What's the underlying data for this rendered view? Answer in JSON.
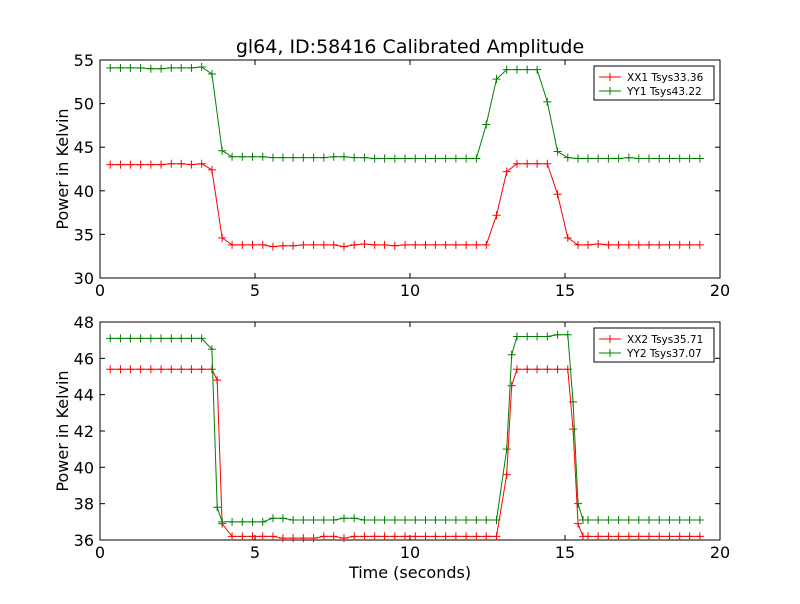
{
  "title": "gl64, ID:58416 Calibrated Amplitude",
  "colors": {
    "red": "#ff0000",
    "green": "#008000",
    "axis": "#000000"
  },
  "chart_data": [
    {
      "type": "line",
      "title": "gl64, ID:58416 Calibrated Amplitude",
      "xlabel": "",
      "ylabel": "Power in Kelvin",
      "xlim": [
        0,
        20
      ],
      "ylim": [
        30,
        55
      ],
      "xticks": [
        0,
        5,
        10,
        15,
        20
      ],
      "yticks": [
        30,
        35,
        40,
        45,
        50,
        55
      ],
      "grid": false,
      "legend_position": "top-right",
      "x": [
        0.33,
        0.66,
        0.98,
        1.31,
        1.64,
        1.97,
        2.3,
        2.62,
        2.95,
        3.28,
        3.61,
        3.94,
        4.26,
        4.59,
        4.92,
        5.25,
        5.58,
        5.9,
        6.23,
        6.56,
        6.89,
        7.22,
        7.54,
        7.87,
        8.2,
        8.53,
        8.86,
        9.18,
        9.51,
        9.84,
        10.17,
        10.5,
        10.82,
        11.15,
        11.48,
        11.81,
        12.14,
        12.46,
        12.79,
        13.12,
        13.45,
        13.78,
        14.1,
        14.43,
        14.76,
        15.09,
        15.42,
        15.74,
        16.07,
        16.4,
        16.73,
        17.06,
        17.38,
        17.71,
        18.04,
        18.37,
        18.7,
        19.02,
        19.35
      ],
      "series": [
        {
          "name": "XX1 Tsys33.36",
          "color": "red",
          "values": [
            43.0,
            43.0,
            43.0,
            43.0,
            43.0,
            43.0,
            43.1,
            43.1,
            43.0,
            43.1,
            42.4,
            34.6,
            33.8,
            33.8,
            33.8,
            33.8,
            33.6,
            33.7,
            33.7,
            33.8,
            33.8,
            33.8,
            33.8,
            33.6,
            33.8,
            33.9,
            33.8,
            33.8,
            33.7,
            33.8,
            33.8,
            33.8,
            33.8,
            33.8,
            33.8,
            33.8,
            33.8,
            33.8,
            37.2,
            42.2,
            43.1,
            43.1,
            43.1,
            43.1,
            39.6,
            34.6,
            33.8,
            33.8,
            33.9,
            33.8,
            33.8,
            33.8,
            33.8,
            33.8,
            33.8,
            33.8,
            33.8,
            33.8,
            33.8
          ]
        },
        {
          "name": "YY1 Tsys43.22",
          "color": "green",
          "values": [
            54.1,
            54.1,
            54.1,
            54.1,
            54.0,
            54.0,
            54.1,
            54.1,
            54.1,
            54.2,
            53.4,
            44.6,
            43.9,
            43.9,
            43.9,
            43.9,
            43.8,
            43.8,
            43.8,
            43.8,
            43.8,
            43.8,
            43.9,
            43.9,
            43.8,
            43.8,
            43.7,
            43.7,
            43.7,
            43.7,
            43.7,
            43.7,
            43.7,
            43.7,
            43.7,
            43.7,
            43.7,
            47.6,
            52.8,
            53.9,
            53.9,
            53.9,
            53.9,
            50.2,
            44.5,
            43.8,
            43.7,
            43.7,
            43.7,
            43.7,
            43.7,
            43.8,
            43.7,
            43.7,
            43.7,
            43.7,
            43.7,
            43.7,
            43.7
          ]
        }
      ]
    },
    {
      "type": "line",
      "title": "",
      "xlabel": "Time (seconds)",
      "ylabel": "Power in Kelvin",
      "xlim": [
        0,
        20
      ],
      "ylim": [
        36,
        48
      ],
      "xticks": [
        0,
        5,
        10,
        15,
        20
      ],
      "yticks": [
        36,
        38,
        40,
        42,
        44,
        46,
        48
      ],
      "grid": false,
      "legend_position": "top-right",
      "x": [
        0.33,
        0.66,
        0.98,
        1.31,
        1.64,
        1.97,
        2.3,
        2.62,
        2.95,
        3.28,
        3.61,
        3.78,
        3.94,
        4.26,
        4.59,
        4.92,
        5.25,
        5.58,
        5.9,
        6.23,
        6.56,
        6.89,
        7.22,
        7.54,
        7.87,
        8.2,
        8.53,
        8.86,
        9.18,
        9.51,
        9.84,
        10.17,
        10.5,
        10.82,
        11.15,
        11.48,
        11.81,
        12.14,
        12.46,
        12.79,
        13.12,
        13.28,
        13.45,
        13.78,
        14.1,
        14.43,
        14.76,
        15.09,
        15.26,
        15.42,
        15.58,
        15.74,
        16.07,
        16.4,
        16.73,
        17.06,
        17.38,
        17.71,
        18.04,
        18.37,
        18.7,
        19.02,
        19.35
      ],
      "series": [
        {
          "name": "XX2 Tsys35.71",
          "color": "red",
          "values": [
            45.4,
            45.4,
            45.4,
            45.4,
            45.4,
            45.4,
            45.4,
            45.4,
            45.4,
            45.4,
            45.4,
            44.8,
            36.9,
            36.2,
            36.2,
            36.2,
            36.2,
            36.2,
            36.1,
            36.1,
            36.1,
            36.1,
            36.2,
            36.2,
            36.1,
            36.2,
            36.2,
            36.2,
            36.2,
            36.2,
            36.2,
            36.2,
            36.2,
            36.2,
            36.2,
            36.2,
            36.2,
            36.2,
            36.2,
            36.2,
            39.6,
            44.5,
            45.4,
            45.4,
            45.4,
            45.4,
            45.4,
            45.4,
            42.1,
            36.9,
            36.2,
            36.2,
            36.2,
            36.2,
            36.2,
            36.2,
            36.2,
            36.2,
            36.2,
            36.2,
            36.2,
            36.2,
            36.2
          ]
        },
        {
          "name": "YY2 Tsys37.07",
          "color": "green",
          "values": [
            47.1,
            47.1,
            47.1,
            47.1,
            47.1,
            47.1,
            47.1,
            47.1,
            47.1,
            47.1,
            46.5,
            37.8,
            37.0,
            37.0,
            37.0,
            37.0,
            37.0,
            37.2,
            37.2,
            37.1,
            37.1,
            37.1,
            37.1,
            37.1,
            37.2,
            37.2,
            37.1,
            37.1,
            37.1,
            37.1,
            37.1,
            37.1,
            37.1,
            37.1,
            37.1,
            37.1,
            37.1,
            37.1,
            37.1,
            37.1,
            41.0,
            46.2,
            47.2,
            47.2,
            47.2,
            47.2,
            47.3,
            47.3,
            43.6,
            38.0,
            37.1,
            37.1,
            37.1,
            37.1,
            37.1,
            37.1,
            37.1,
            37.1,
            37.1,
            37.1,
            37.1,
            37.1,
            37.1
          ]
        }
      ]
    }
  ]
}
